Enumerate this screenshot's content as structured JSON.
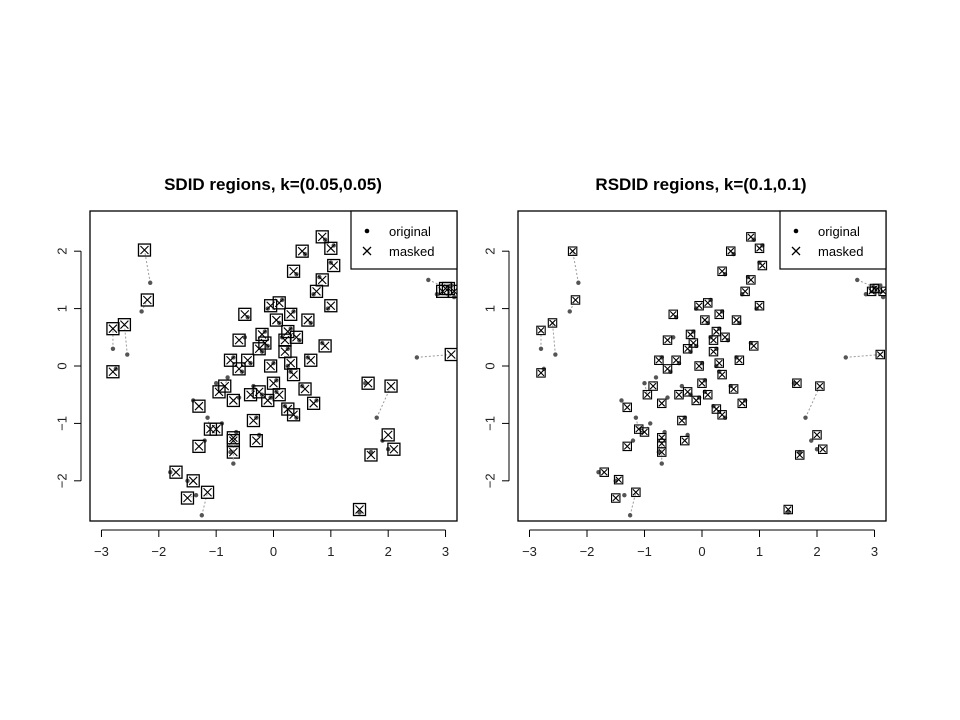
{
  "chart_data": [
    {
      "type": "scatter",
      "title": "SDID regions, k=(0.05,0.05)",
      "xlabel": "",
      "ylabel": "",
      "xlim": [
        -3.2,
        3.2
      ],
      "ylim": [
        -2.7,
        2.7
      ],
      "xticks": [
        -3,
        -2,
        -1,
        0,
        1,
        2,
        3
      ],
      "yticks": [
        -2,
        -1,
        0,
        1,
        2
      ],
      "legend": {
        "placement": "top-right",
        "entries": [
          "original",
          "masked"
        ]
      },
      "marker_box": "large",
      "pairs": [
        [
          -2.8,
          0.3,
          -2.8,
          0.65
        ],
        [
          -2.75,
          -0.05,
          -2.8,
          -0.1
        ],
        [
          -2.55,
          0.2,
          -2.6,
          0.72
        ],
        [
          -2.3,
          0.95,
          -2.2,
          1.15
        ],
        [
          -2.15,
          1.45,
          -2.25,
          2.02
        ],
        [
          -1.8,
          -1.85,
          -1.7,
          -1.85
        ],
        [
          -1.5,
          -2.0,
          -1.4,
          -2.0
        ],
        [
          -1.35,
          -2.25,
          -1.5,
          -2.3
        ],
        [
          -1.25,
          -2.6,
          -1.15,
          -2.2
        ],
        [
          -1.2,
          -1.3,
          -1.3,
          -1.4
        ],
        [
          -1.4,
          -0.6,
          -1.3,
          -0.7
        ],
        [
          -1.15,
          -0.9,
          -1.1,
          -1.1
        ],
        [
          -1.0,
          -0.3,
          -0.95,
          -0.45
        ],
        [
          -0.9,
          -1.0,
          -1.0,
          -1.1
        ],
        [
          -0.75,
          -1.5,
          -0.7,
          -1.5
        ],
        [
          -0.7,
          -1.7,
          -0.7,
          -1.3
        ],
        [
          -0.65,
          -1.15,
          -0.7,
          -1.25
        ],
        [
          -0.6,
          -0.55,
          -0.7,
          -0.6
        ],
        [
          -0.8,
          -0.2,
          -0.85,
          -0.35
        ],
        [
          -0.7,
          0.15,
          -0.75,
          0.1
        ],
        [
          -0.5,
          0.5,
          -0.6,
          0.45
        ],
        [
          -0.45,
          0.85,
          -0.5,
          0.9
        ],
        [
          -0.35,
          -0.35,
          -0.4,
          -0.5
        ],
        [
          -0.3,
          -0.9,
          -0.35,
          -0.95
        ],
        [
          -0.25,
          -1.2,
          -0.3,
          -1.3
        ],
        [
          -0.2,
          0.25,
          -0.25,
          0.3
        ],
        [
          -0.15,
          0.6,
          -0.2,
          0.55
        ],
        [
          -0.1,
          1.0,
          -0.05,
          1.05
        ],
        [
          -0.05,
          -0.55,
          -0.1,
          -0.6
        ],
        [
          0.0,
          0.05,
          -0.05,
          0.0
        ],
        [
          0.05,
          -0.25,
          0.0,
          -0.3
        ],
        [
          0.1,
          0.75,
          0.05,
          0.8
        ],
        [
          0.15,
          1.15,
          0.1,
          1.1
        ],
        [
          0.2,
          -0.7,
          0.25,
          -0.75
        ],
        [
          0.25,
          0.3,
          0.2,
          0.25
        ],
        [
          0.3,
          -0.1,
          0.35,
          -0.15
        ],
        [
          0.35,
          0.95,
          0.3,
          0.9
        ],
        [
          0.4,
          1.6,
          0.35,
          1.65
        ],
        [
          0.45,
          0.45,
          0.4,
          0.5
        ],
        [
          0.5,
          -0.35,
          0.55,
          -0.4
        ],
        [
          0.55,
          1.95,
          0.5,
          2.0
        ],
        [
          0.6,
          0.15,
          0.65,
          0.1
        ],
        [
          0.65,
          0.75,
          0.6,
          0.8
        ],
        [
          0.7,
          1.25,
          0.75,
          1.3
        ],
        [
          0.75,
          -0.6,
          0.7,
          -0.65
        ],
        [
          0.8,
          1.55,
          0.85,
          1.5
        ],
        [
          0.85,
          0.4,
          0.9,
          0.35
        ],
        [
          0.9,
          2.2,
          0.85,
          2.25
        ],
        [
          1.0,
          1.8,
          1.05,
          1.75
        ],
        [
          1.05,
          2.1,
          1.0,
          2.05
        ],
        [
          0.95,
          1.0,
          1.0,
          1.05
        ],
        [
          0.4,
          -0.9,
          0.35,
          -0.85
        ],
        [
          -0.4,
          0.05,
          -0.45,
          0.1
        ],
        [
          -0.55,
          -0.1,
          -0.6,
          -0.05
        ],
        [
          0.15,
          0.5,
          0.2,
          0.45
        ],
        [
          -0.2,
          -0.5,
          -0.25,
          -0.45
        ],
        [
          0.25,
          0.0,
          0.3,
          0.05
        ],
        [
          -0.1,
          0.35,
          -0.15,
          0.4
        ],
        [
          0.05,
          -0.45,
          0.1,
          -0.5
        ],
        [
          0.3,
          0.65,
          0.25,
          0.6
        ],
        [
          1.6,
          -0.3,
          1.65,
          -0.3
        ],
        [
          1.8,
          -0.9,
          2.05,
          -0.35
        ],
        [
          1.7,
          -1.5,
          1.7,
          -1.55
        ],
        [
          1.9,
          -1.3,
          2.0,
          -1.2
        ],
        [
          2.0,
          -1.45,
          2.1,
          -1.45
        ],
        [
          1.5,
          -2.55,
          1.5,
          -2.5
        ],
        [
          2.5,
          0.15,
          3.1,
          0.2
        ],
        [
          2.7,
          1.5,
          3.05,
          1.35
        ],
        [
          2.85,
          1.25,
          2.95,
          1.3
        ],
        [
          3.15,
          1.2,
          3.15,
          1.3
        ],
        [
          3.1,
          1.4,
          3.0,
          1.35
        ]
      ]
    },
    {
      "type": "scatter",
      "title": "RSDID regions, k=(0.1,0.1)",
      "xlabel": "",
      "ylabel": "",
      "xlim": [
        -3.2,
        3.2
      ],
      "ylim": [
        -2.7,
        2.7
      ],
      "xticks": [
        -3,
        -2,
        -1,
        0,
        1,
        2,
        3
      ],
      "yticks": [
        -2,
        -1,
        0,
        1,
        2
      ],
      "legend": {
        "placement": "top-right",
        "entries": [
          "original",
          "masked"
        ]
      },
      "marker_box": "small",
      "pairs": [
        [
          -2.8,
          0.3,
          -2.8,
          0.62
        ],
        [
          -2.75,
          -0.05,
          -2.8,
          -0.12
        ],
        [
          -2.55,
          0.2,
          -2.6,
          0.75
        ],
        [
          -2.3,
          0.95,
          -2.2,
          1.15
        ],
        [
          -2.15,
          1.45,
          -2.25,
          2.0
        ],
        [
          -1.8,
          -1.85,
          -1.7,
          -1.85
        ],
        [
          -1.5,
          -2.0,
          -1.45,
          -1.98
        ],
        [
          -1.35,
          -2.25,
          -1.5,
          -2.3
        ],
        [
          -1.25,
          -2.6,
          -1.15,
          -2.2
        ],
        [
          -1.2,
          -1.3,
          -1.3,
          -1.4
        ],
        [
          -1.4,
          -0.6,
          -1.3,
          -0.72
        ],
        [
          -1.15,
          -0.9,
          -1.1,
          -1.1
        ],
        [
          -1.0,
          -0.3,
          -0.95,
          -0.5
        ],
        [
          -0.9,
          -1.0,
          -1.0,
          -1.15
        ],
        [
          -0.75,
          -1.5,
          -0.7,
          -1.5
        ],
        [
          -0.7,
          -1.7,
          -0.7,
          -1.35
        ],
        [
          -0.65,
          -1.15,
          -0.7,
          -1.25
        ],
        [
          -0.6,
          -0.55,
          -0.7,
          -0.65
        ],
        [
          -0.8,
          -0.2,
          -0.85,
          -0.35
        ],
        [
          -0.7,
          0.15,
          -0.75,
          0.1
        ],
        [
          -0.5,
          0.5,
          -0.6,
          0.45
        ],
        [
          -0.45,
          0.85,
          -0.5,
          0.9
        ],
        [
          -0.35,
          -0.35,
          -0.4,
          -0.5
        ],
        [
          -0.3,
          -0.9,
          -0.35,
          -0.95
        ],
        [
          -0.25,
          -1.2,
          -0.3,
          -1.3
        ],
        [
          -0.2,
          0.25,
          -0.25,
          0.3
        ],
        [
          -0.15,
          0.6,
          -0.2,
          0.55
        ],
        [
          -0.1,
          1.0,
          -0.05,
          1.05
        ],
        [
          -0.05,
          -0.55,
          -0.1,
          -0.6
        ],
        [
          0.0,
          0.05,
          -0.05,
          0.0
        ],
        [
          0.05,
          -0.25,
          0.0,
          -0.3
        ],
        [
          0.1,
          0.75,
          0.05,
          0.8
        ],
        [
          0.15,
          1.15,
          0.1,
          1.1
        ],
        [
          0.2,
          -0.7,
          0.25,
          -0.75
        ],
        [
          0.25,
          0.3,
          0.2,
          0.25
        ],
        [
          0.3,
          -0.1,
          0.35,
          -0.15
        ],
        [
          0.35,
          0.95,
          0.3,
          0.9
        ],
        [
          0.4,
          1.6,
          0.35,
          1.65
        ],
        [
          0.45,
          0.45,
          0.4,
          0.5
        ],
        [
          0.5,
          -0.35,
          0.55,
          -0.4
        ],
        [
          0.55,
          1.95,
          0.5,
          2.0
        ],
        [
          0.6,
          0.15,
          0.65,
          0.1
        ],
        [
          0.65,
          0.75,
          0.6,
          0.8
        ],
        [
          0.7,
          1.25,
          0.75,
          1.3
        ],
        [
          0.75,
          -0.6,
          0.7,
          -0.65
        ],
        [
          0.8,
          1.55,
          0.85,
          1.5
        ],
        [
          0.85,
          0.4,
          0.9,
          0.35
        ],
        [
          0.9,
          2.2,
          0.85,
          2.25
        ],
        [
          1.0,
          1.8,
          1.05,
          1.75
        ],
        [
          1.05,
          2.1,
          1.0,
          2.05
        ],
        [
          0.95,
          1.0,
          1.0,
          1.05
        ],
        [
          0.4,
          -0.9,
          0.35,
          -0.85
        ],
        [
          -0.4,
          0.05,
          -0.45,
          0.1
        ],
        [
          -0.55,
          -0.1,
          -0.6,
          -0.05
        ],
        [
          0.15,
          0.5,
          0.2,
          0.45
        ],
        [
          -0.2,
          -0.5,
          -0.25,
          -0.45
        ],
        [
          0.25,
          0.0,
          0.3,
          0.05
        ],
        [
          -0.1,
          0.35,
          -0.15,
          0.4
        ],
        [
          0.05,
          -0.45,
          0.1,
          -0.5
        ],
        [
          0.3,
          0.65,
          0.25,
          0.6
        ],
        [
          1.6,
          -0.3,
          1.65,
          -0.3
        ],
        [
          1.8,
          -0.9,
          2.05,
          -0.35
        ],
        [
          1.7,
          -1.5,
          1.7,
          -1.55
        ],
        [
          1.9,
          -1.3,
          2.0,
          -1.2
        ],
        [
          2.0,
          -1.45,
          2.1,
          -1.45
        ],
        [
          1.5,
          -2.55,
          1.5,
          -2.5
        ],
        [
          2.5,
          0.15,
          3.1,
          0.2
        ],
        [
          2.7,
          1.5,
          3.05,
          1.35
        ],
        [
          2.85,
          1.25,
          2.95,
          1.3
        ],
        [
          3.15,
          1.2,
          3.15,
          1.3
        ],
        [
          3.1,
          1.4,
          3.0,
          1.35
        ]
      ]
    }
  ]
}
